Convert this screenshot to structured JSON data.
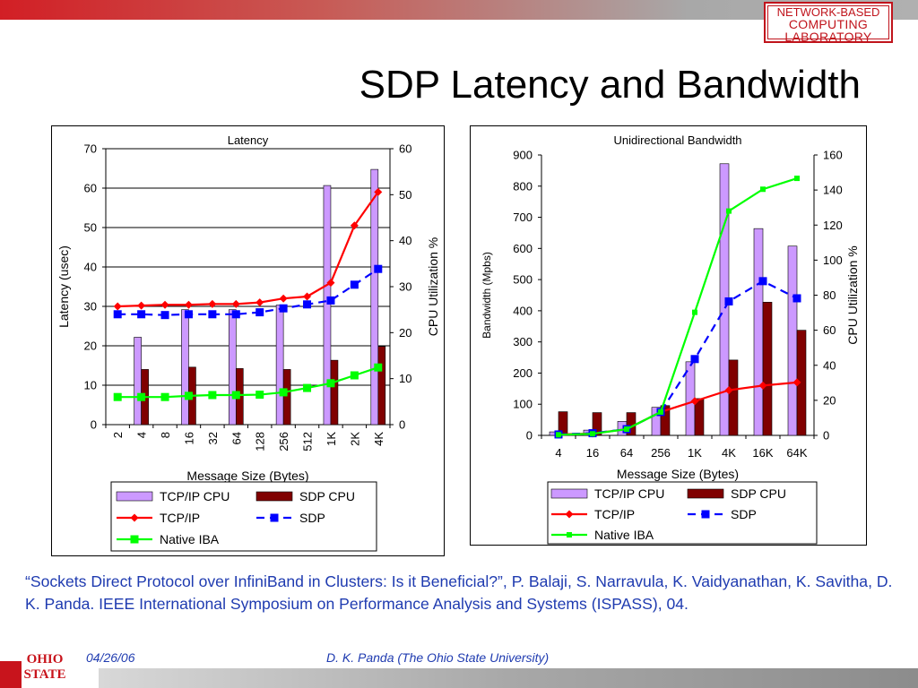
{
  "header": {
    "logo_line1": "NETWORK-BASED",
    "logo_line2": "COMPUTING",
    "logo_line3": "LABORATORY",
    "title": "SDP Latency and Bandwidth"
  },
  "colors": {
    "tcp_cpu_bar": "#cc99ff",
    "sdp_cpu_bar": "#800000",
    "tcp_line": "#ff0000",
    "sdp_line": "#0000ff",
    "native_iba_line": "#00ff00",
    "citation_text": "#1f3bb0",
    "brand_red": "#c8141c"
  },
  "chart_data": [
    {
      "type": "bar",
      "title": "Latency",
      "xlabel": "Message Size (Bytes)",
      "ylabel": "Latency (usec)",
      "y2label": "CPU Utilization %",
      "ylim": [
        0,
        70
      ],
      "yticks": [
        0,
        10,
        20,
        30,
        40,
        50,
        60,
        70
      ],
      "y2lim": [
        0,
        60
      ],
      "y2ticks": [
        0,
        10,
        20,
        30,
        40,
        50,
        60
      ],
      "grid": true,
      "legend_position": "bottom",
      "categories": [
        "2",
        "4",
        "8",
        "16",
        "32",
        "64",
        "128",
        "256",
        "512",
        "1K",
        "2K",
        "4K"
      ],
      "series": [
        {
          "name": "TCP/IP CPU",
          "kind": "bar",
          "axis": "right",
          "values": [
            null,
            19,
            null,
            25,
            null,
            25,
            null,
            26,
            null,
            52,
            null,
            55.5
          ]
        },
        {
          "name": "SDP CPU",
          "kind": "bar",
          "axis": "right",
          "values": [
            null,
            12,
            null,
            12.5,
            null,
            12.2,
            null,
            12,
            null,
            14,
            null,
            17
          ]
        },
        {
          "name": "TCP/IP",
          "kind": "line",
          "axis": "left",
          "marker": "diamond",
          "dash": false,
          "values": [
            30,
            30.2,
            30.4,
            30.4,
            30.6,
            30.6,
            31,
            32,
            32.5,
            36,
            50.5,
            59
          ]
        },
        {
          "name": "SDP",
          "kind": "line",
          "axis": "left",
          "marker": "square",
          "dash": true,
          "values": [
            28,
            28,
            27.8,
            28,
            28,
            28,
            28.5,
            29.5,
            30.5,
            31.5,
            35.5,
            39.5
          ]
        },
        {
          "name": "Native IBA",
          "kind": "line",
          "axis": "left",
          "marker": "square",
          "dash": false,
          "values": [
            7,
            7,
            7,
            7.3,
            7.5,
            7.5,
            7.6,
            8.2,
            9.3,
            10.5,
            12.5,
            14.5
          ]
        }
      ],
      "legend_order": [
        "TCP/IP CPU",
        "SDP CPU",
        "TCP/IP",
        "SDP",
        "Native IBA"
      ]
    },
    {
      "type": "bar",
      "title": "Unidirectional Bandwidth",
      "xlabel": "Message Size (Bytes)",
      "ylabel": "Bandwidth (Mpbs)",
      "y2label": "CPU Utilization %",
      "ylim": [
        0,
        900
      ],
      "yticks": [
        0,
        100,
        200,
        300,
        400,
        500,
        600,
        700,
        800,
        900
      ],
      "y2lim": [
        0,
        160
      ],
      "y2ticks": [
        0,
        20,
        40,
        60,
        80,
        100,
        120,
        140,
        160
      ],
      "grid": false,
      "legend_position": "bottom",
      "categories": [
        "4",
        "16",
        "64",
        "256",
        "1K",
        "4K",
        "16K",
        "64K"
      ],
      "series": [
        {
          "name": "TCP/IP CPU",
          "kind": "bar",
          "axis": "right",
          "values": [
            2,
            3,
            8,
            16,
            42,
            155,
            118,
            108
          ]
        },
        {
          "name": "SDP CPU",
          "kind": "bar",
          "axis": "right",
          "values": [
            13.5,
            13,
            13,
            17,
            21,
            43,
            76,
            60
          ]
        },
        {
          "name": "TCP/IP",
          "kind": "line",
          "axis": "left",
          "marker": "diamond",
          "dash": false,
          "values": [
            3,
            6,
            20,
            75,
            110,
            145,
            160,
            170
          ]
        },
        {
          "name": "SDP",
          "kind": "line",
          "axis": "left",
          "marker": "square",
          "dash": true,
          "values": [
            3,
            7,
            20,
            75,
            245,
            430,
            495,
            440
          ]
        },
        {
          "name": "Native IBA",
          "kind": "line",
          "axis": "left",
          "marker": "dot",
          "dash": false,
          "values": [
            2,
            5,
            20,
            75,
            395,
            720,
            790,
            825
          ]
        }
      ],
      "legend_order": [
        "TCP/IP CPU",
        "SDP CPU",
        "TCP/IP",
        "SDP",
        "Native IBA"
      ]
    }
  ],
  "citation": "“Sockets Direct Protocol over InfiniBand in Clusters: Is it Beneficial?”, P. Balaji, S. Narravula, K. Vaidyanathan, K. Savitha, D. K. Panda. IEEE International Symposium on Performance Analysis and Systems (ISPASS), 04.",
  "footer": {
    "date": "04/26/06",
    "author": "D. K. Panda (The Ohio State University)",
    "university_logo_line1": "OHIO",
    "university_logo_line2": "STATE"
  }
}
